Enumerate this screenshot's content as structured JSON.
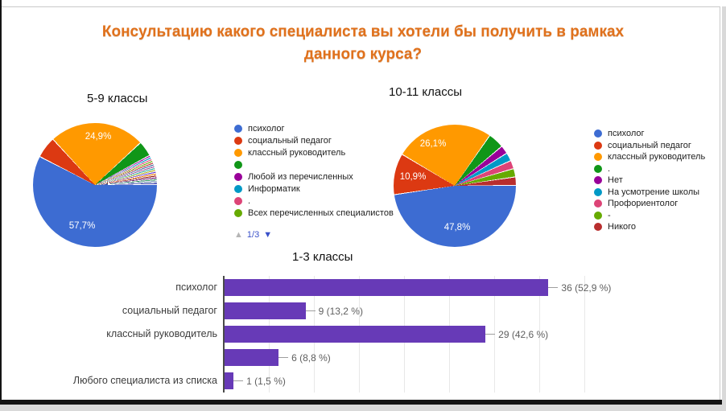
{
  "page": {
    "title": "Консультацию какого специалиста вы хотели бы получить в рамках данного курса?"
  },
  "pagination": {
    "page": "1/3"
  },
  "chart_data": [
    {
      "id": "pie-5-9",
      "type": "pie",
      "title": "5-9 классы",
      "legend_position": "right",
      "shown_labels": [
        "57,7%",
        "24,9%"
      ],
      "slices": [
        {
          "label": "психолог",
          "pct": 57.7,
          "color": "#3d6cd2"
        },
        {
          "label": "социальный педагог",
          "pct": 5.6,
          "color": "#dc3912"
        },
        {
          "label": "классный руководитель",
          "pct": 24.9,
          "color": "#ff9900"
        },
        {
          "label": "",
          "pct": 4.0,
          "color": "#109618"
        },
        {
          "label": "",
          "pct": 0.4875,
          "color": "#990099"
        },
        {
          "label": "",
          "pct": 0.4875,
          "color": "#0099c6"
        },
        {
          "label": "",
          "pct": 0.4875,
          "color": "#dd4477"
        },
        {
          "label": "",
          "pct": 0.4875,
          "color": "#66aa00"
        },
        {
          "label": "",
          "pct": 0.4875,
          "color": "#b82e2e"
        },
        {
          "label": "",
          "pct": 0.4875,
          "color": "#316395"
        },
        {
          "label": "",
          "pct": 0.4875,
          "color": "#994499"
        },
        {
          "label": "",
          "pct": 0.4875,
          "color": "#22aa99"
        },
        {
          "label": "",
          "pct": 0.4875,
          "color": "#aaaa11"
        },
        {
          "label": "",
          "pct": 0.4875,
          "color": "#6633cc"
        },
        {
          "label": "",
          "pct": 0.4875,
          "color": "#e67300"
        },
        {
          "label": "",
          "pct": 0.4875,
          "color": "#8b0707"
        },
        {
          "label": "",
          "pct": 0.4875,
          "color": "#651067"
        },
        {
          "label": "",
          "pct": 0.4875,
          "color": "#329262"
        },
        {
          "label": "",
          "pct": 0.4875,
          "color": "#5574a6"
        },
        {
          "label": "",
          "pct": 0.4875,
          "color": "#3b3eac"
        }
      ],
      "legend": [
        {
          "label": "психолог",
          "color": "#3d6cd2"
        },
        {
          "label": "социальный педагог",
          "color": "#dc3912"
        },
        {
          "label": "классный руководитель",
          "color": "#ff9900"
        },
        {
          "label": "",
          "color": "#109618"
        },
        {
          "label": "Любой из перечисленных",
          "color": "#990099"
        },
        {
          "label": "Информатик",
          "color": "#0099c6"
        },
        {
          "label": ".",
          "color": "#dd4477"
        },
        {
          "label": "Всех перечисленных специалистов",
          "color": "#66aa00"
        }
      ]
    },
    {
      "id": "pie-10-11",
      "type": "pie",
      "title": "10-11 классы",
      "legend_position": "right",
      "shown_labels": [
        "47,8%",
        "26,1%",
        "10,9%"
      ],
      "slices": [
        {
          "label": "психолог",
          "pct": 47.8,
          "color": "#3d6cd2"
        },
        {
          "label": "социальный педагог",
          "pct": 10.9,
          "color": "#dc3912"
        },
        {
          "label": "классный руководитель",
          "pct": 26.1,
          "color": "#ff9900"
        },
        {
          "label": ".",
          "pct": 4.2,
          "color": "#109618"
        },
        {
          "label": "Нет",
          "pct": 2.2,
          "color": "#990099"
        },
        {
          "label": "На усмотрение школы",
          "pct": 2.2,
          "color": "#0099c6"
        },
        {
          "label": "Профориентолог",
          "pct": 2.2,
          "color": "#dd4477"
        },
        {
          "label": "-",
          "pct": 2.2,
          "color": "#66aa00"
        },
        {
          "label": "Никого",
          "pct": 2.2,
          "color": "#b82e2e"
        }
      ],
      "legend": [
        {
          "label": "психолог",
          "color": "#3d6cd2"
        },
        {
          "label": "социальный педагог",
          "color": "#dc3912"
        },
        {
          "label": "классный руководитель",
          "color": "#ff9900"
        },
        {
          "label": ".",
          "color": "#109618"
        },
        {
          "label": "Нет",
          "color": "#990099"
        },
        {
          "label": "На усмотрение школы",
          "color": "#0099c6"
        },
        {
          "label": "Профориентолог",
          "color": "#dd4477"
        },
        {
          "label": "-",
          "color": "#66aa00"
        },
        {
          "label": "Никого",
          "color": "#b82e2e"
        }
      ]
    },
    {
      "id": "bar-1-3",
      "type": "bar",
      "title": "1-3 классы",
      "orientation": "horizontal",
      "categories": [
        "психолог",
        "социальный педагог",
        "классный руководитель",
        "",
        "Любого специалиста из списка"
      ],
      "values": [
        36,
        9,
        29,
        6,
        1
      ],
      "value_labels": [
        "36 (52,9 %)",
        "9 (13,2 %)",
        "29 (42,6 %)",
        "6 (8,8 %)",
        "1 (1,5 %)"
      ],
      "xlim": [
        0,
        45
      ],
      "grid_step": 5,
      "grid": true,
      "bar_color": "#673ab7"
    }
  ]
}
